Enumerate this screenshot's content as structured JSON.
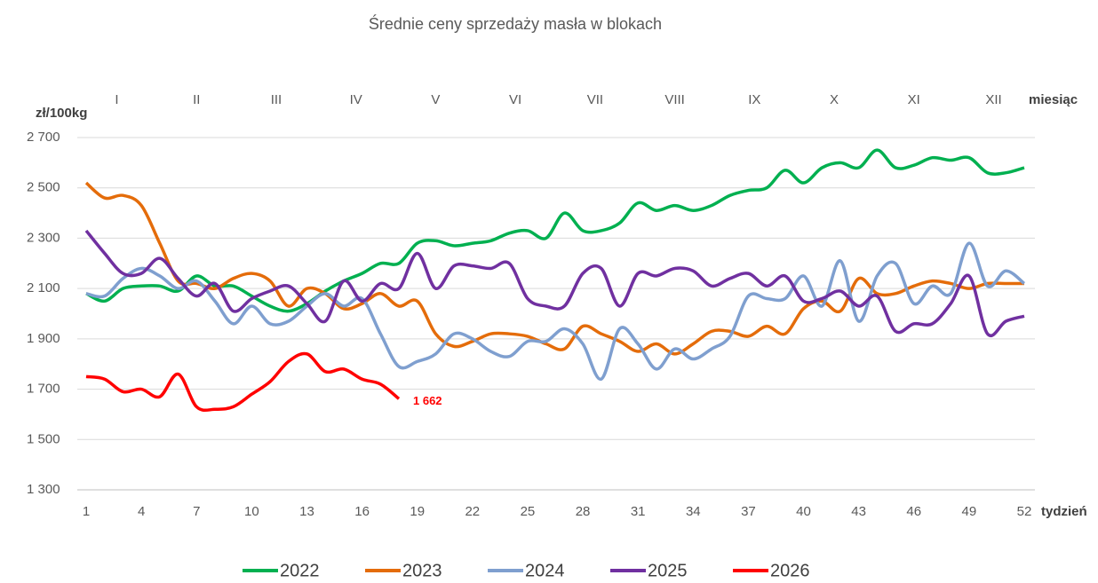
{
  "chart_data": {
    "type": "line",
    "title": "Średnie ceny sprzedaży masła w blokach",
    "y_label": "zł/100kg",
    "x_label": "tydzień",
    "month_label": "miesiąc",
    "months": [
      "I",
      "II",
      "III",
      "IV",
      "V",
      "VI",
      "VII",
      "VIII",
      "IX",
      "X",
      "XI",
      "XII"
    ],
    "x": [
      1,
      2,
      3,
      4,
      5,
      6,
      7,
      8,
      9,
      10,
      11,
      12,
      13,
      14,
      15,
      16,
      17,
      18,
      19,
      20,
      21,
      22,
      23,
      24,
      25,
      26,
      27,
      28,
      29,
      30,
      31,
      32,
      33,
      34,
      35,
      36,
      37,
      38,
      39,
      40,
      41,
      42,
      43,
      44,
      45,
      46,
      47,
      48,
      49,
      50,
      51,
      52
    ],
    "xlim": [
      1,
      52
    ],
    "xticks": [
      1,
      4,
      7,
      10,
      13,
      16,
      19,
      22,
      25,
      28,
      31,
      34,
      37,
      40,
      43,
      46,
      49,
      52
    ],
    "ylim": [
      1300,
      2700
    ],
    "yticks": [
      {
        "value": 1300,
        "label": "1 300"
      },
      {
        "value": 1500,
        "label": "1 500"
      },
      {
        "value": 1700,
        "label": "1 700"
      },
      {
        "value": 1900,
        "label": "1 900"
      },
      {
        "value": 2100,
        "label": "2 100"
      },
      {
        "value": 2300,
        "label": "2 300"
      },
      {
        "value": 2500,
        "label": "2 500"
      },
      {
        "value": 2700,
        "label": "2 700"
      }
    ],
    "grid": true,
    "legend": "bottom",
    "series": [
      {
        "name": "2022",
        "color": "#00b050",
        "values": [
          2080,
          2050,
          2100,
          2110,
          2110,
          2090,
          2150,
          2110,
          2110,
          2070,
          2030,
          2010,
          2040,
          2090,
          2130,
          2160,
          2200,
          2200,
          2280,
          2290,
          2270,
          2280,
          2290,
          2320,
          2330,
          2300,
          2400,
          2330,
          2330,
          2360,
          2440,
          2410,
          2430,
          2410,
          2430,
          2470,
          2490,
          2500,
          2570,
          2520,
          2580,
          2600,
          2580,
          2650,
          2580,
          2590,
          2620,
          2610,
          2620,
          2560,
          2560,
          2580
        ]
      },
      {
        "name": "2023",
        "color": "#e46c0a",
        "values": [
          2520,
          2460,
          2470,
          2430,
          2280,
          2130,
          2120,
          2100,
          2140,
          2160,
          2130,
          2030,
          2100,
          2080,
          2020,
          2040,
          2080,
          2030,
          2050,
          1920,
          1870,
          1890,
          1920,
          1920,
          1910,
          1880,
          1860,
          1950,
          1920,
          1890,
          1850,
          1880,
          1840,
          1880,
          1930,
          1930,
          1910,
          1950,
          1920,
          2020,
          2050,
          2010,
          2140,
          2080,
          2080,
          2110,
          2130,
          2120,
          2100,
          2120,
          2120,
          2120
        ]
      },
      {
        "name": "2024",
        "color": "#7f9fcf",
        "values": [
          2080,
          2070,
          2140,
          2180,
          2150,
          2100,
          2130,
          2050,
          1960,
          2030,
          1960,
          1970,
          2030,
          2080,
          2030,
          2060,
          1920,
          1790,
          1810,
          1840,
          1920,
          1900,
          1850,
          1830,
          1890,
          1890,
          1940,
          1880,
          1740,
          1940,
          1880,
          1780,
          1860,
          1820,
          1860,
          1910,
          2070,
          2060,
          2060,
          2150,
          2030,
          2210,
          1970,
          2150,
          2200,
          2040,
          2110,
          2080,
          2280,
          2110,
          2170,
          2120
        ]
      },
      {
        "name": "2025",
        "color": "#7030a0",
        "values": [
          2330,
          2240,
          2160,
          2160,
          2220,
          2140,
          2070,
          2120,
          2010,
          2060,
          2090,
          2110,
          2040,
          1970,
          2130,
          2050,
          2120,
          2100,
          2240,
          2100,
          2190,
          2190,
          2180,
          2200,
          2060,
          2030,
          2030,
          2160,
          2180,
          2030,
          2160,
          2150,
          2180,
          2170,
          2110,
          2140,
          2160,
          2110,
          2150,
          2050,
          2060,
          2090,
          2030,
          2070,
          1930,
          1960,
          1960,
          2040,
          2150,
          1920,
          1970,
          1990
        ]
      },
      {
        "name": "2026",
        "color": "#ff0000",
        "values": [
          1750,
          1740,
          1690,
          1700,
          1670,
          1760,
          1630,
          1620,
          1630,
          1680,
          1730,
          1810,
          1840,
          1770,
          1780,
          1740,
          1720,
          1662,
          null,
          null,
          null,
          null,
          null,
          null,
          null,
          null,
          null,
          null,
          null,
          null,
          null,
          null,
          null,
          null,
          null,
          null,
          null,
          null,
          null,
          null,
          null,
          null,
          null,
          null,
          null,
          null,
          null,
          null,
          null,
          null,
          null,
          null
        ],
        "value_labels": {
          "17": "1 662"
        }
      }
    ]
  }
}
